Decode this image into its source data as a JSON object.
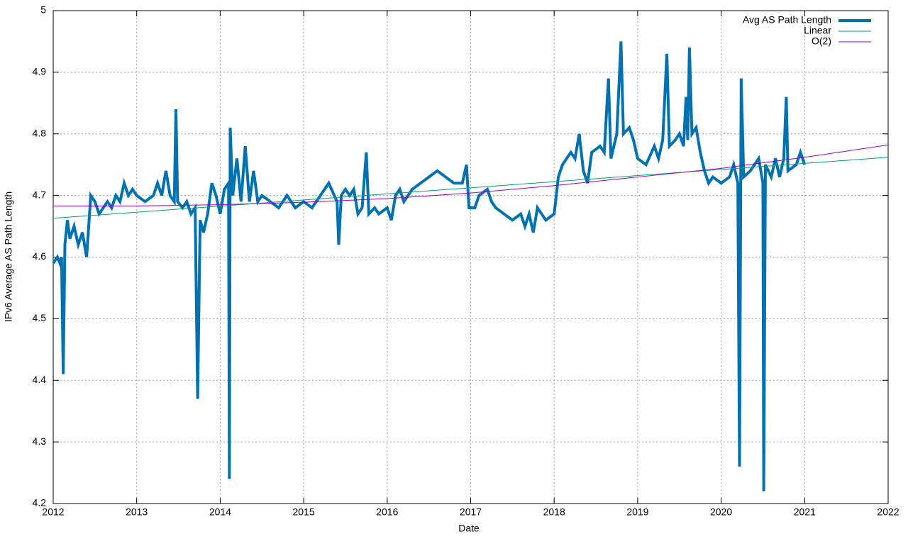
{
  "chart_data": {
    "type": "line",
    "xlabel": "Date",
    "ylabel": "IPv6 Average AS Path Length",
    "xlim": [
      2012,
      2022
    ],
    "xticks": [
      2012,
      2013,
      2014,
      2015,
      2016,
      2017,
      2018,
      2019,
      2020,
      2021,
      2022
    ],
    "ylim": [
      4.2,
      5
    ],
    "yticks": [
      4.2,
      4.3,
      4.4,
      4.5,
      4.6,
      4.7,
      4.8,
      4.9,
      5
    ],
    "grid": true,
    "legend": "top-right",
    "series": [
      {
        "name": "Avg AS Path Length",
        "color": "#0072b2",
        "width": 4,
        "x": [
          2012.0,
          2012.05,
          2012.08,
          2012.1,
          2012.12,
          2012.14,
          2012.17,
          2012.2,
          2012.25,
          2012.3,
          2012.35,
          2012.4,
          2012.42,
          2012.45,
          2012.5,
          2012.55,
          2012.6,
          2012.65,
          2012.7,
          2012.75,
          2012.8,
          2012.85,
          2012.9,
          2012.95,
          2013.0,
          2013.1,
          2013.2,
          2013.25,
          2013.3,
          2013.35,
          2013.4,
          2013.45,
          2013.47,
          2013.49,
          2013.55,
          2013.6,
          2013.65,
          2013.7,
          2013.73,
          2013.76,
          2013.8,
          2013.85,
          2013.9,
          2013.95,
          2014.0,
          2014.05,
          2014.1,
          2014.11,
          2014.12,
          2014.15,
          2014.2,
          2014.25,
          2014.3,
          2014.35,
          2014.4,
          2014.45,
          2014.5,
          2014.6,
          2014.7,
          2014.8,
          2014.9,
          2015.0,
          2015.1,
          2015.2,
          2015.3,
          2015.4,
          2015.42,
          2015.45,
          2015.5,
          2015.55,
          2015.6,
          2015.65,
          2015.7,
          2015.75,
          2015.78,
          2015.85,
          2015.9,
          2016.0,
          2016.05,
          2016.1,
          2016.15,
          2016.2,
          2016.3,
          2016.4,
          2016.5,
          2016.6,
          2016.7,
          2016.8,
          2016.9,
          2016.95,
          2016.98,
          2017.05,
          2017.1,
          2017.2,
          2017.25,
          2017.3,
          2017.4,
          2017.5,
          2017.6,
          2017.65,
          2017.7,
          2017.75,
          2017.8,
          2017.85,
          2017.9,
          2018.0,
          2018.05,
          2018.1,
          2018.2,
          2018.25,
          2018.3,
          2018.35,
          2018.4,
          2018.45,
          2018.55,
          2018.6,
          2018.65,
          2018.68,
          2018.75,
          2018.8,
          2018.83,
          2018.9,
          2018.95,
          2019.0,
          2019.1,
          2019.2,
          2019.25,
          2019.3,
          2019.35,
          2019.38,
          2019.45,
          2019.5,
          2019.55,
          2019.58,
          2019.6,
          2019.62,
          2019.65,
          2019.7,
          2019.75,
          2019.8,
          2019.85,
          2019.9,
          2020.0,
          2020.1,
          2020.15,
          2020.2,
          2020.22,
          2020.24,
          2020.27,
          2020.35,
          2020.45,
          2020.5,
          2020.51,
          2020.53,
          2020.6,
          2020.65,
          2020.7,
          2020.75,
          2020.78,
          2020.8,
          2020.9,
          2020.95,
          2021.0
        ],
        "values": [
          4.59,
          4.6,
          4.59,
          4.6,
          4.41,
          4.62,
          4.66,
          4.63,
          4.65,
          4.62,
          4.64,
          4.6,
          4.64,
          4.7,
          4.69,
          4.67,
          4.68,
          4.69,
          4.68,
          4.7,
          4.69,
          4.72,
          4.7,
          4.71,
          4.7,
          4.69,
          4.7,
          4.72,
          4.7,
          4.74,
          4.7,
          4.69,
          4.84,
          4.69,
          4.68,
          4.69,
          4.67,
          4.68,
          4.37,
          4.66,
          4.64,
          4.67,
          4.72,
          4.7,
          4.67,
          4.71,
          4.72,
          4.24,
          4.81,
          4.7,
          4.76,
          4.69,
          4.78,
          4.69,
          4.74,
          4.69,
          4.7,
          4.69,
          4.68,
          4.7,
          4.68,
          4.69,
          4.68,
          4.7,
          4.72,
          4.69,
          4.62,
          4.7,
          4.71,
          4.7,
          4.71,
          4.67,
          4.68,
          4.77,
          4.67,
          4.68,
          4.67,
          4.68,
          4.66,
          4.7,
          4.71,
          4.69,
          4.71,
          4.72,
          4.73,
          4.74,
          4.73,
          4.72,
          4.72,
          4.75,
          4.68,
          4.68,
          4.7,
          4.71,
          4.69,
          4.68,
          4.67,
          4.66,
          4.67,
          4.65,
          4.67,
          4.64,
          4.68,
          4.67,
          4.66,
          4.67,
          4.73,
          4.75,
          4.77,
          4.76,
          4.8,
          4.74,
          4.72,
          4.77,
          4.78,
          4.77,
          4.89,
          4.76,
          4.8,
          4.95,
          4.8,
          4.81,
          4.79,
          4.76,
          4.75,
          4.78,
          4.76,
          4.79,
          4.93,
          4.78,
          4.79,
          4.8,
          4.78,
          4.86,
          4.79,
          4.94,
          4.8,
          4.81,
          4.77,
          4.74,
          4.72,
          4.73,
          4.72,
          4.73,
          4.75,
          4.72,
          4.26,
          4.89,
          4.73,
          4.74,
          4.76,
          4.72,
          4.22,
          4.75,
          4.73,
          4.76,
          4.73,
          4.76,
          4.86,
          4.74,
          4.75,
          4.77,
          4.75
        ]
      },
      {
        "name": "Linear",
        "color": "#009e73",
        "width": 1,
        "x": [
          2012,
          2022
        ],
        "values": [
          4.663,
          4.762
        ]
      },
      {
        "name": "O(2)",
        "color": "#9400d3",
        "width": 1,
        "x": [
          2012,
          2013,
          2014,
          2015,
          2016,
          2017,
          2018,
          2019,
          2020,
          2021,
          2022
        ],
        "values": [
          4.683,
          4.683,
          4.685,
          4.689,
          4.695,
          4.704,
          4.716,
          4.73,
          4.744,
          4.762,
          4.782
        ]
      }
    ]
  }
}
